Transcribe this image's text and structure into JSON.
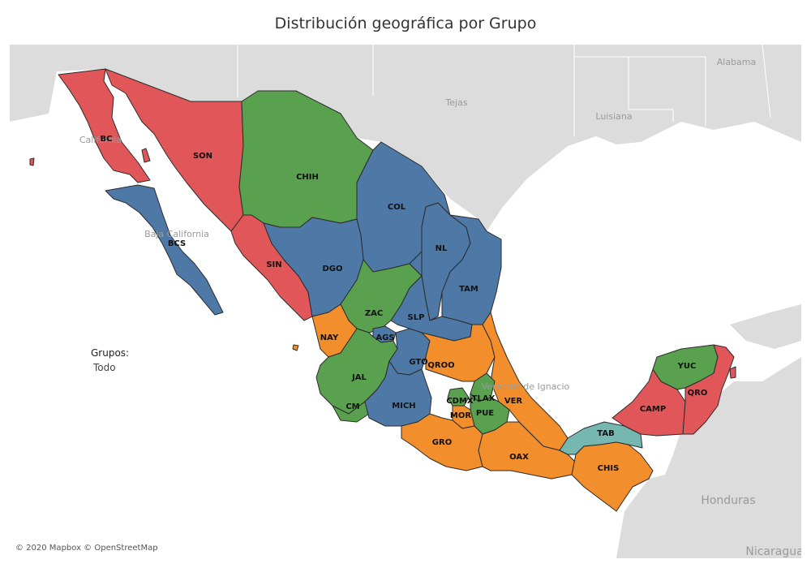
{
  "title": "Distribución geográfica por Grupo",
  "legend": {
    "title": "Grupos:",
    "value": "Todo"
  },
  "attribution": "© 2020 Mapbox © OpenStreetMap",
  "colors": {
    "red": "#e15759",
    "green": "#59a14f",
    "blue": "#4e79a7",
    "orange": "#f28e2b",
    "teal": "#76b7b2",
    "land": "#dcdcdc",
    "water": "#ffffff"
  },
  "geo_labels": {
    "tejas": "Tejas",
    "luisiana": "Luisiana",
    "alabama": "Alabama",
    "honduras": "Honduras",
    "nicaragua": "Nicaragua",
    "baja_california": "Baja California",
    "california": "California",
    "veracruz": "Veracruz de Ignacio"
  },
  "states": [
    {
      "code": "BC",
      "group": "red"
    },
    {
      "code": "SON",
      "group": "red"
    },
    {
      "code": "SIN",
      "group": "red"
    },
    {
      "code": "CAMP",
      "group": "red"
    },
    {
      "code": "QRO",
      "group": "red"
    },
    {
      "code": "CHIH",
      "group": "green"
    },
    {
      "code": "ZAC",
      "group": "green"
    },
    {
      "code": "JAL",
      "group": "green"
    },
    {
      "code": "CM",
      "group": "green"
    },
    {
      "code": "CDMX",
      "group": "green"
    },
    {
      "code": "TLAX",
      "group": "green"
    },
    {
      "code": "PUE",
      "group": "green"
    },
    {
      "code": "YUC",
      "group": "green"
    },
    {
      "code": "BCS",
      "group": "blue"
    },
    {
      "code": "COL",
      "group": "blue"
    },
    {
      "code": "NL",
      "group": "blue"
    },
    {
      "code": "DGO",
      "group": "blue"
    },
    {
      "code": "TAM",
      "group": "blue"
    },
    {
      "code": "SLP",
      "group": "blue"
    },
    {
      "code": "AGS",
      "group": "blue"
    },
    {
      "code": "GTO",
      "group": "blue"
    },
    {
      "code": "MICH",
      "group": "blue"
    },
    {
      "code": "NAY",
      "group": "orange"
    },
    {
      "code": "QROO",
      "group": "orange"
    },
    {
      "code": "VER",
      "group": "orange"
    },
    {
      "code": "MOR",
      "group": "orange"
    },
    {
      "code": "GRO",
      "group": "orange"
    },
    {
      "code": "OAX",
      "group": "orange"
    },
    {
      "code": "CHIS",
      "group": "orange"
    },
    {
      "code": "TAB",
      "group": "teal"
    }
  ]
}
